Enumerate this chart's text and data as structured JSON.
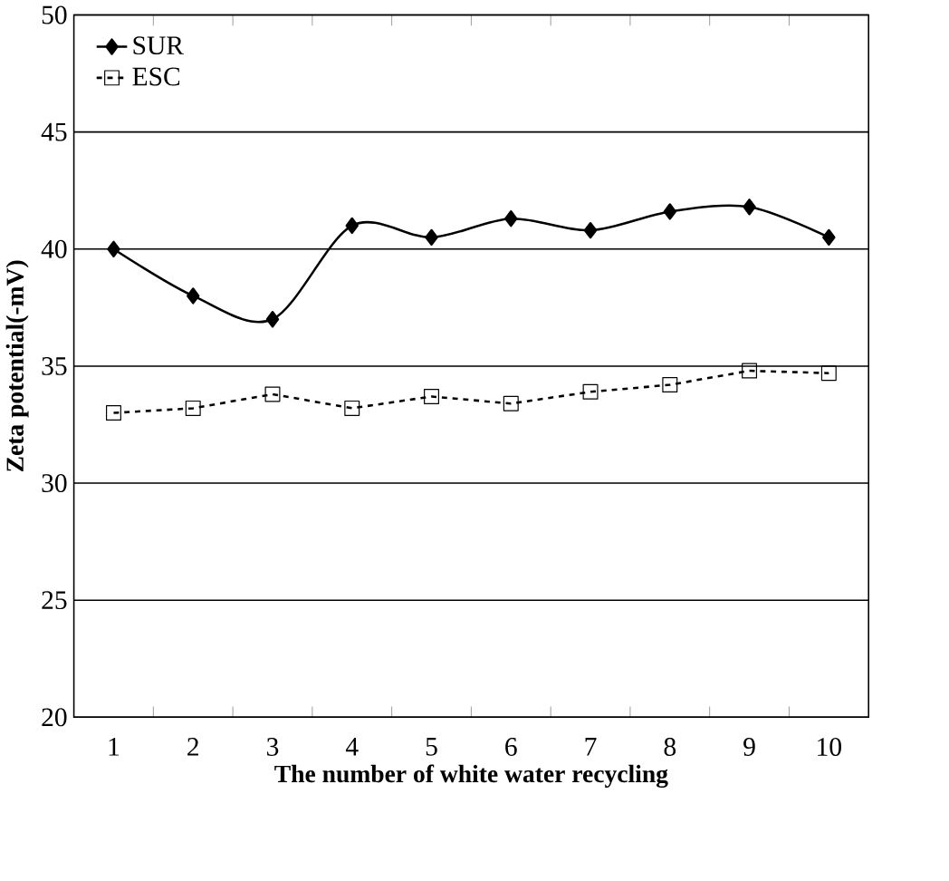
{
  "chart_data": {
    "type": "line",
    "xlabel": "The number of white water recycling",
    "ylabel": "Zeta potential(-mV)",
    "categories": [
      "1",
      "2",
      "3",
      "4",
      "5",
      "6",
      "7",
      "8",
      "9",
      "10"
    ],
    "series": [
      {
        "name": "SUR",
        "color": "#000000",
        "marker": "diamond",
        "line_style": "solid",
        "values": [
          40,
          38,
          37,
          41,
          40.5,
          41.3,
          40.8,
          41.6,
          41.8,
          40.5
        ]
      },
      {
        "name": "ESC",
        "color": "#000000",
        "marker": "square",
        "line_style": "dashed",
        "values": [
          33.0,
          33.2,
          33.8,
          33.2,
          33.7,
          33.4,
          33.9,
          34.2,
          34.8,
          34.7
        ]
      }
    ],
    "ylim": [
      20,
      50
    ],
    "yticks": [
      20,
      25,
      30,
      35,
      40,
      45,
      50
    ],
    "grid": "y",
    "legend": "top left"
  }
}
